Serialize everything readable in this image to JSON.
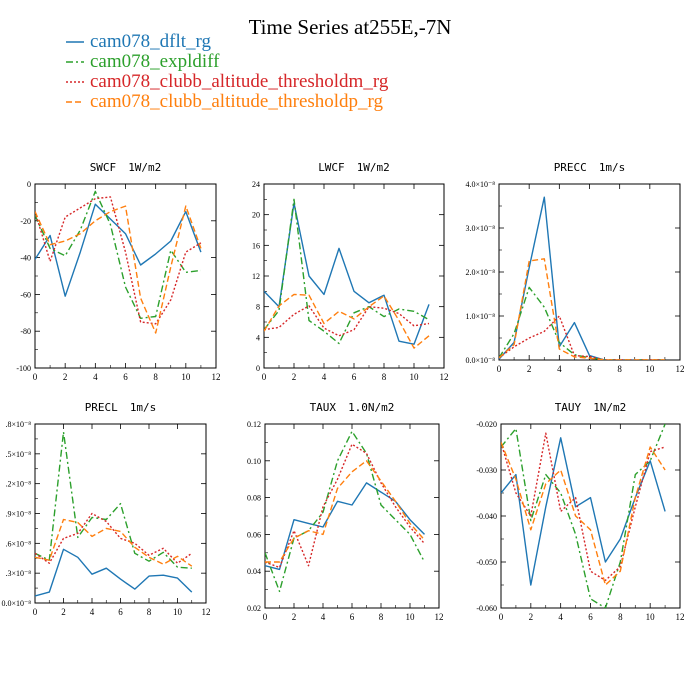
{
  "figure": {
    "title": "Time Series at255E,-7N",
    "legend": [
      {
        "label": "cam078_dflt_rg",
        "color": "#1f77b4",
        "dash": "solid"
      },
      {
        "label": "cam078_expldiff",
        "color": "#2ca02c",
        "dash": "dashdot"
      },
      {
        "label": "cam078_clubb_altitude_thresholdm_rg",
        "color": "#d62728",
        "dash": "dotted"
      },
      {
        "label": "cam078_clubb_altitude_thresholdp_rg",
        "color": "#ff7f0e",
        "dash": "dashed"
      }
    ]
  },
  "chart_data": [
    {
      "type": "line",
      "title": "SWCF",
      "units": "1W/m2",
      "xlim": [
        0,
        12
      ],
      "ylim": [
        -100,
        0
      ],
      "xticks": [
        0,
        2,
        4,
        6,
        8,
        10,
        12
      ],
      "yticks": [
        -100,
        -80,
        -60,
        -40,
        -20,
        0
      ],
      "ytick_labels": [
        "-100",
        "-80",
        "-60",
        "-40",
        "-20",
        "0"
      ],
      "x": [
        0,
        1,
        2,
        3,
        4,
        5,
        6,
        7,
        8,
        9,
        10,
        11
      ],
      "series": [
        {
          "name": "cam078_dflt_rg",
          "values": [
            -41,
            -28,
            -61,
            -37,
            -11,
            -19,
            -27,
            -44,
            -38,
            -31,
            -15,
            -37
          ]
        },
        {
          "name": "cam078_expldiff",
          "values": [
            -17,
            -35,
            -39,
            -25,
            -4,
            -22,
            -56,
            -73,
            -72,
            -36,
            -48,
            -47
          ]
        },
        {
          "name": "cam078_clubb_altitude_thresholdm_rg",
          "values": [
            -15,
            -42,
            -18,
            -13,
            -8,
            -7,
            -37,
            -75,
            -76,
            -63,
            -37,
            -32
          ]
        },
        {
          "name": "cam078_clubb_altitude_thresholdp_rg",
          "values": [
            -15,
            -33,
            -31,
            -27,
            -20,
            -15,
            -12,
            -62,
            -81,
            -45,
            -12,
            -35
          ]
        }
      ]
    },
    {
      "type": "line",
      "title": "LWCF",
      "units": "1W/m2",
      "xlim": [
        0,
        12
      ],
      "ylim": [
        0,
        24
      ],
      "xticks": [
        0,
        2,
        4,
        6,
        8,
        10,
        12
      ],
      "yticks": [
        0,
        4,
        8,
        12,
        16,
        20,
        24
      ],
      "ytick_labels": [
        "0",
        "4",
        "8",
        "12",
        "16",
        "20",
        "24"
      ],
      "x": [
        0,
        1,
        2,
        3,
        4,
        5,
        6,
        7,
        8,
        9,
        10,
        11
      ],
      "series": [
        {
          "name": "cam078_dflt_rg",
          "values": [
            10,
            8,
            21.5,
            12,
            9.6,
            15.6,
            10,
            8.5,
            9.5,
            3.5,
            3.1,
            8.3
          ]
        },
        {
          "name": "cam078_expldiff",
          "values": [
            5,
            7.5,
            22,
            6.2,
            4.8,
            3.2,
            7.2,
            8,
            6.7,
            7.7,
            7.4,
            6.3
          ]
        },
        {
          "name": "cam078_clubb_altitude_thresholdm_rg",
          "values": [
            5,
            5.3,
            7,
            8.1,
            5.2,
            4.2,
            5,
            8,
            7.8,
            7.1,
            5.5,
            5.8
          ]
        },
        {
          "name": "cam078_clubb_altitude_thresholdp_rg",
          "values": [
            4.8,
            8.1,
            9.6,
            9.5,
            5.8,
            7.4,
            6.4,
            8,
            9.4,
            6.2,
            2.6,
            4.2
          ]
        }
      ]
    },
    {
      "type": "line",
      "title": "PRECC",
      "units": "1m/s",
      "xlim": [
        0,
        12
      ],
      "ylim": [
        0,
        4e-08
      ],
      "xticks": [
        0,
        2,
        4,
        6,
        8,
        10,
        12
      ],
      "yticks": [
        0,
        1e-08,
        2e-08,
        3e-08,
        4e-08
      ],
      "ytick_labels": [
        "0.0×10⁻⁸",
        "1.0×10⁻⁸",
        "2.0×10⁻⁸",
        "3.0×10⁻⁸",
        "4.0×10⁻⁸"
      ],
      "x": [
        0,
        1,
        2,
        3,
        4,
        5,
        6,
        7,
        8,
        9,
        10,
        11
      ],
      "series": [
        {
          "name": "cam078_dflt_rg",
          "values": [
            2e-10,
            4e-09,
            2.1e-08,
            3.7e-08,
            3e-09,
            8.5e-09,
            1e-09,
            0,
            0,
            0,
            0,
            0
          ]
        },
        {
          "name": "cam078_expldiff",
          "values": [
            5e-10,
            6e-09,
            1.65e-08,
            1.2e-08,
            4e-09,
            1.2e-09,
            5e-10,
            0,
            0,
            0,
            0,
            0
          ]
        },
        {
          "name": "cam078_clubb_altitude_thresholdm_rg",
          "values": [
            5e-10,
            3e-09,
            5e-09,
            6.5e-09,
            1e-08,
            1e-09,
            8e-10,
            0,
            0,
            0,
            0,
            0
          ]
        },
        {
          "name": "cam078_clubb_altitude_thresholdp_rg",
          "values": [
            5e-10,
            3.5e-09,
            2.25e-08,
            2.3e-08,
            2.5e-09,
            7e-10,
            4e-10,
            0,
            0,
            0,
            0,
            0
          ]
        }
      ]
    },
    {
      "type": "line",
      "title": "PRECL",
      "units": "1m/s",
      "xlim": [
        0,
        12
      ],
      "ylim": [
        0,
        1.8e-08
      ],
      "xticks": [
        0,
        2,
        4,
        6,
        8,
        10,
        12
      ],
      "yticks": [
        0,
        3e-09,
        6e-09,
        9e-09,
        1.2e-08,
        1.5e-08,
        1.8e-08
      ],
      "ytick_labels": [
        "0.0×10⁻⁸",
        ".3×10⁻⁸",
        ".6×10⁻⁸",
        ".9×10⁻⁸",
        ".2×10⁻⁸",
        ".5×10⁻⁸",
        ".8×10⁻⁸"
      ],
      "x": [
        0,
        1,
        2,
        3,
        4,
        5,
        6,
        7,
        8,
        9,
        10,
        11
      ],
      "series": [
        {
          "name": "cam078_dflt_rg",
          "values": [
            7e-10,
            1.1e-09,
            5.4e-09,
            4.6e-09,
            2.9e-09,
            3.5e-09,
            2.4e-09,
            1.4e-09,
            2.7e-09,
            2.8e-09,
            2.5e-09,
            1.1e-09
          ]
        },
        {
          "name": "cam078_expldiff",
          "values": [
            5e-09,
            4.3e-09,
            1.72e-08,
            6.6e-09,
            8.6e-09,
            8.4e-09,
            1e-08,
            5e-09,
            4.2e-09,
            5.1e-09,
            3.6e-09,
            3.5e-09
          ]
        },
        {
          "name": "cam078_clubb_altitude_thresholdm_rg",
          "values": [
            5e-09,
            4e-09,
            6.5e-09,
            7e-09,
            9e-09,
            8.2e-09,
            6.5e-09,
            6e-09,
            4.8e-09,
            5.5e-09,
            4e-09,
            5e-09
          ]
        },
        {
          "name": "cam078_clubb_altitude_thresholdp_rg",
          "values": [
            4.6e-09,
            4.3e-09,
            8.4e-09,
            8.1e-09,
            6.7e-09,
            7.5e-09,
            7.2e-09,
            5.6e-09,
            4.6e-09,
            3.9e-09,
            4.7e-09,
            3.7e-09
          ]
        }
      ]
    },
    {
      "type": "line",
      "title": "TAUX",
      "units": "1.0N/m2",
      "xlim": [
        0,
        12
      ],
      "ylim": [
        0.02,
        0.12
      ],
      "xticks": [
        0,
        2,
        4,
        6,
        8,
        10,
        12
      ],
      "yticks": [
        0.02,
        0.04,
        0.06,
        0.08,
        0.1,
        0.12
      ],
      "ytick_labels": [
        "0.02",
        "0.04",
        "0.06",
        "0.08",
        "0.10",
        "0.12"
      ],
      "x": [
        0,
        1,
        2,
        3,
        4,
        5,
        6,
        7,
        8,
        9,
        10,
        11
      ],
      "series": [
        {
          "name": "cam078_dflt_rg",
          "values": [
            0.043,
            0.041,
            0.068,
            0.066,
            0.064,
            0.078,
            0.076,
            0.088,
            0.083,
            0.078,
            0.068,
            0.06
          ]
        },
        {
          "name": "cam078_expldiff",
          "values": [
            0.05,
            0.029,
            0.058,
            0.062,
            0.072,
            0.1,
            0.116,
            0.104,
            0.076,
            0.068,
            0.06,
            0.045
          ]
        },
        {
          "name": "cam078_clubb_altitude_thresholdm_rg",
          "values": [
            0.045,
            0.042,
            0.062,
            0.043,
            0.075,
            0.09,
            0.109,
            0.104,
            0.088,
            0.075,
            0.064,
            0.055
          ]
        },
        {
          "name": "cam078_clubb_altitude_thresholdp_rg",
          "values": [
            0.045,
            0.045,
            0.058,
            0.062,
            0.06,
            0.085,
            0.094,
            0.1,
            0.089,
            0.078,
            0.066,
            0.057
          ]
        }
      ]
    },
    {
      "type": "line",
      "title": "TAUY",
      "units": "1N/m2",
      "xlim": [
        0,
        12
      ],
      "ylim": [
        -0.06,
        -0.02
      ],
      "xticks": [
        0,
        2,
        4,
        6,
        8,
        10,
        12
      ],
      "yticks": [
        -0.06,
        -0.05,
        -0.04,
        -0.03,
        -0.02
      ],
      "ytick_labels": [
        "-0.060",
        "-0.050",
        "-0.040",
        "-0.030",
        "-0.020"
      ],
      "x": [
        0,
        1,
        2,
        3,
        4,
        5,
        6,
        7,
        8,
        9,
        10,
        11
      ],
      "series": [
        {
          "name": "cam078_dflt_rg",
          "values": [
            -0.035,
            -0.031,
            -0.055,
            -0.038,
            -0.023,
            -0.038,
            -0.036,
            -0.05,
            -0.045,
            -0.036,
            -0.028,
            -0.039
          ]
        },
        {
          "name": "cam078_expldiff",
          "values": [
            -0.025,
            -0.021,
            -0.041,
            -0.031,
            -0.035,
            -0.044,
            -0.058,
            -0.06,
            -0.05,
            -0.031,
            -0.028,
            -0.02
          ]
        },
        {
          "name": "cam078_clubb_altitude_thresholdm_rg",
          "values": [
            -0.024,
            -0.035,
            -0.04,
            -0.022,
            -0.039,
            -0.036,
            -0.052,
            -0.054,
            -0.051,
            -0.038,
            -0.026,
            -0.025
          ]
        },
        {
          "name": "cam078_clubb_altitude_thresholdp_rg",
          "values": [
            -0.024,
            -0.032,
            -0.043,
            -0.033,
            -0.03,
            -0.04,
            -0.043,
            -0.055,
            -0.052,
            -0.036,
            -0.025,
            -0.03
          ]
        }
      ]
    }
  ]
}
